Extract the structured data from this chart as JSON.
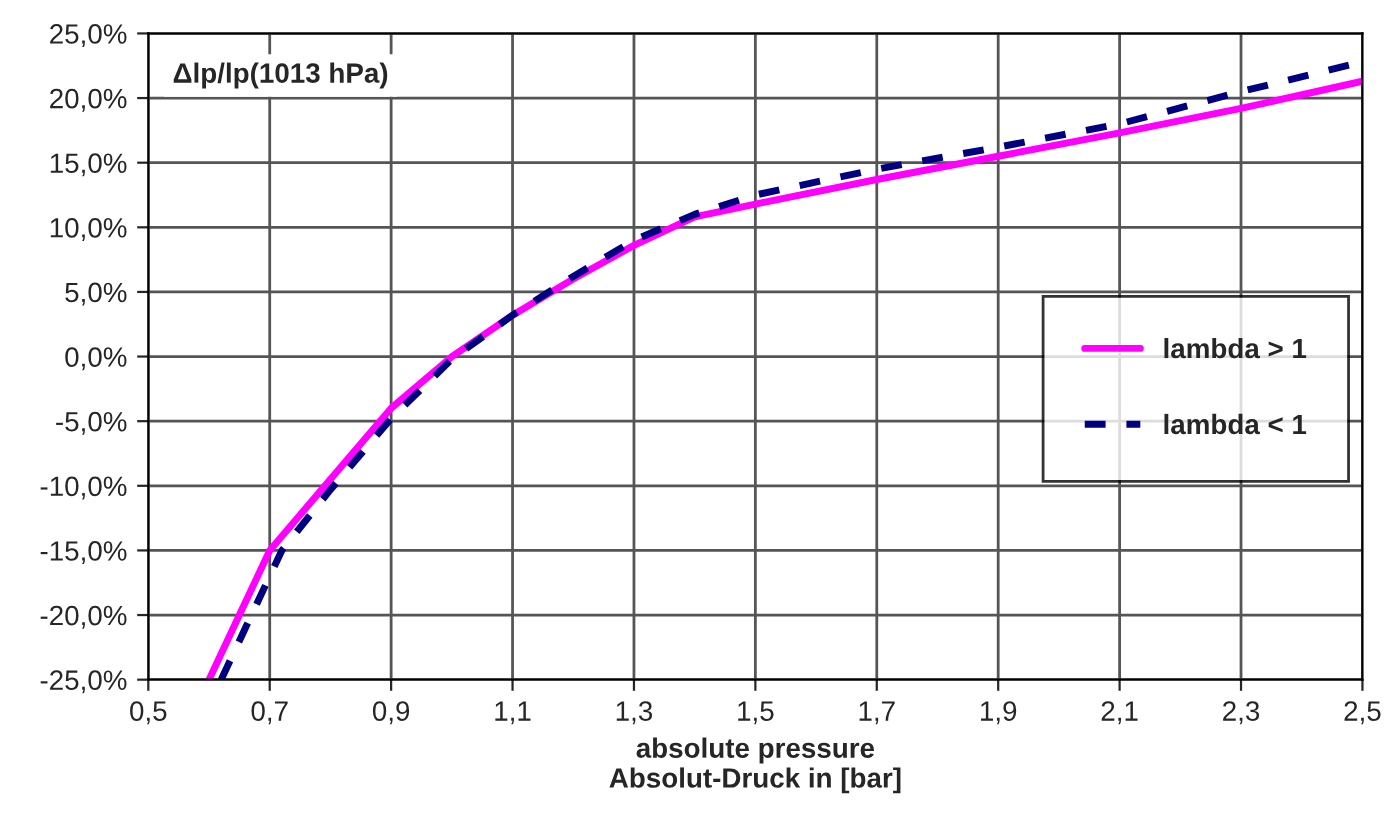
{
  "chart_data": {
    "type": "line",
    "xlabel": "absolute pressure\nAbsolut-Druck in [bar]",
    "annotations": [
      "Δlp/lp(1013 hPa)"
    ],
    "xlim": [
      0.5,
      2.5
    ],
    "xticks": [
      {
        "value": 0.5,
        "label": "0,5"
      },
      {
        "value": 0.7,
        "label": "0,7"
      },
      {
        "value": 0.9,
        "label": "0,9"
      },
      {
        "value": 1.1,
        "label": "1,1"
      },
      {
        "value": 1.3,
        "label": "1,3"
      },
      {
        "value": 1.5,
        "label": "1,5"
      },
      {
        "value": 1.7,
        "label": "1,7"
      },
      {
        "value": 1.9,
        "label": "1,9"
      },
      {
        "value": 2.1,
        "label": "2,1"
      },
      {
        "value": 2.3,
        "label": "2,3"
      },
      {
        "value": 2.5,
        "label": "2,5"
      }
    ],
    "ylim": [
      -25,
      25
    ],
    "yticks": [
      {
        "value": -25,
        "label": "-25,0%"
      },
      {
        "value": -20,
        "label": "-20,0%"
      },
      {
        "value": -15,
        "label": "-15,0%"
      },
      {
        "value": -10,
        "label": "-10,0%"
      },
      {
        "value": -5,
        "label": "-5,0%"
      },
      {
        "value": 0,
        "label": "0,0%"
      },
      {
        "value": 5,
        "label": "5,0%"
      },
      {
        "value": 10,
        "label": "10,0%"
      },
      {
        "value": 15,
        "label": "15,0%"
      },
      {
        "value": 20,
        "label": "20,0%"
      },
      {
        "value": 25,
        "label": "25,0%"
      }
    ],
    "grid": true,
    "legend": "right",
    "marker": "none",
    "series": [
      {
        "name": "lambda > 1",
        "color": "#ff00ff",
        "line_style": "solid",
        "x": [
          0.6,
          0.65,
          0.7,
          0.8,
          0.9,
          1.0,
          1.1,
          1.2,
          1.3,
          1.4,
          1.5,
          1.7,
          1.9,
          2.1,
          2.3,
          2.5
        ],
        "values": [
          -25,
          -20,
          -15,
          -9.5,
          -4,
          0,
          3.2,
          6,
          8.6,
          10.8,
          11.8,
          13.7,
          15.5,
          17.3,
          19.2,
          21.3
        ]
      },
      {
        "name": "lambda < 1",
        "color": "#000080",
        "line_style": "dashed",
        "x": [
          0.62,
          0.67,
          0.72,
          0.8,
          0.9,
          1.0,
          1.1,
          1.2,
          1.3,
          1.4,
          1.5,
          1.7,
          1.9,
          2.1,
          2.3,
          2.5
        ],
        "values": [
          -25,
          -20,
          -15,
          -10.3,
          -4.8,
          -0.2,
          3.2,
          6.2,
          9,
          11,
          12.5,
          14.5,
          16.2,
          18,
          20.5,
          22.8
        ]
      }
    ]
  }
}
